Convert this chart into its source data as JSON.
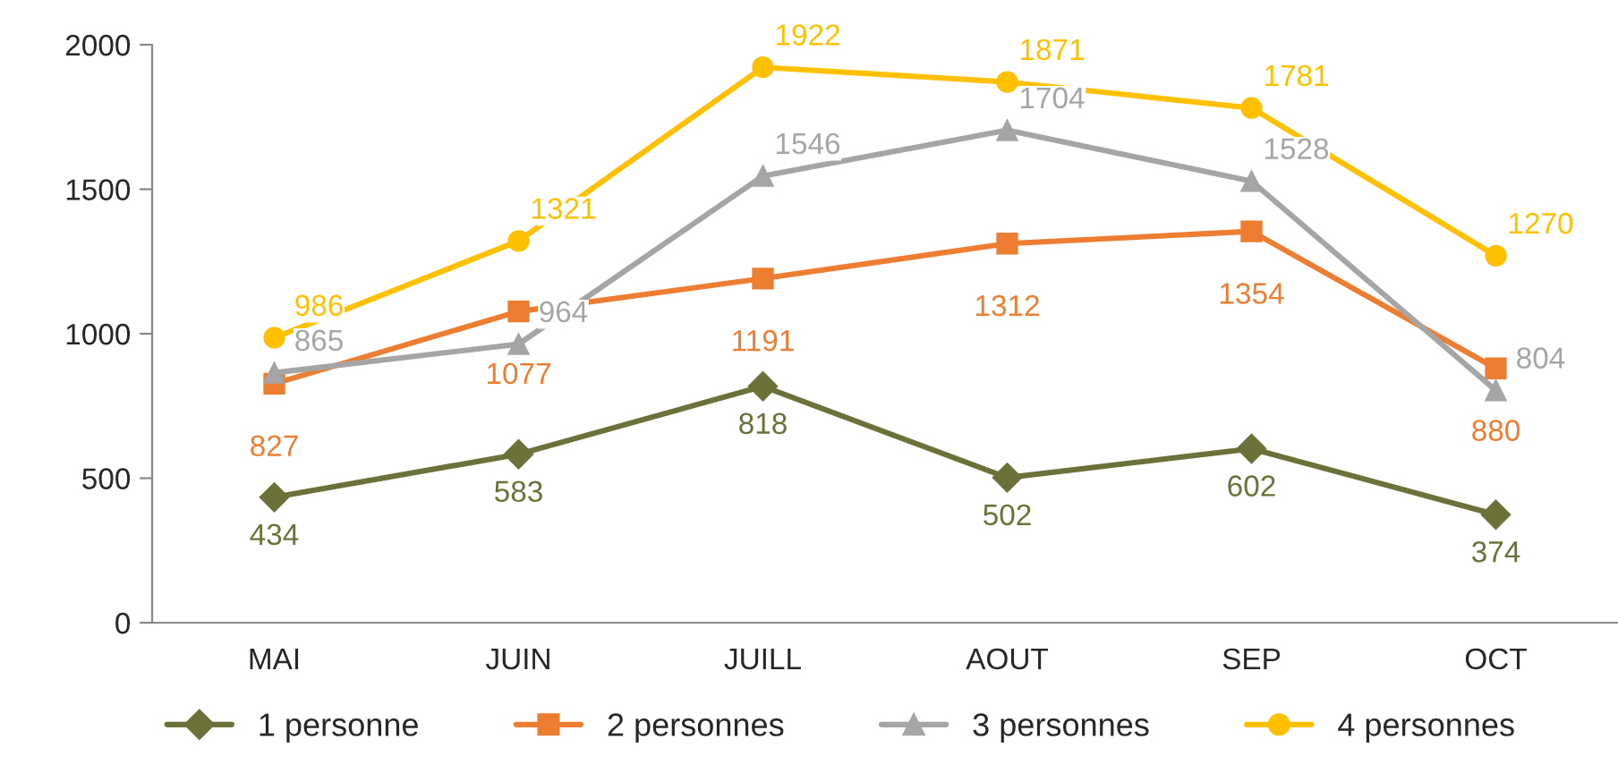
{
  "chart_data": {
    "type": "line",
    "categories": [
      "MAI",
      "JUIN",
      "JUILL",
      "AOUT",
      "SEP",
      "OCT"
    ],
    "series": [
      {
        "name": "1 personne",
        "color": "#6b7138",
        "marker": "diamond",
        "values": [
          434,
          583,
          818,
          502,
          602,
          374
        ]
      },
      {
        "name": "2 personnes",
        "color": "#ed7d31",
        "marker": "square",
        "values": [
          827,
          1077,
          1191,
          1312,
          1354,
          880
        ]
      },
      {
        "name": "3 personnes",
        "color": "#a5a5a5",
        "marker": "triangle",
        "values": [
          865,
          964,
          1546,
          1704,
          1528,
          804
        ]
      },
      {
        "name": "4 personnes",
        "color": "#ffc000",
        "marker": "circle",
        "values": [
          986,
          1321,
          1922,
          1871,
          1781,
          1270
        ]
      }
    ],
    "ylim": [
      0,
      2000
    ],
    "yticks": [
      0,
      500,
      1000,
      1500,
      2000
    ],
    "grid": false,
    "legend": "bottom",
    "data_labels": true,
    "line_style": "solid"
  }
}
